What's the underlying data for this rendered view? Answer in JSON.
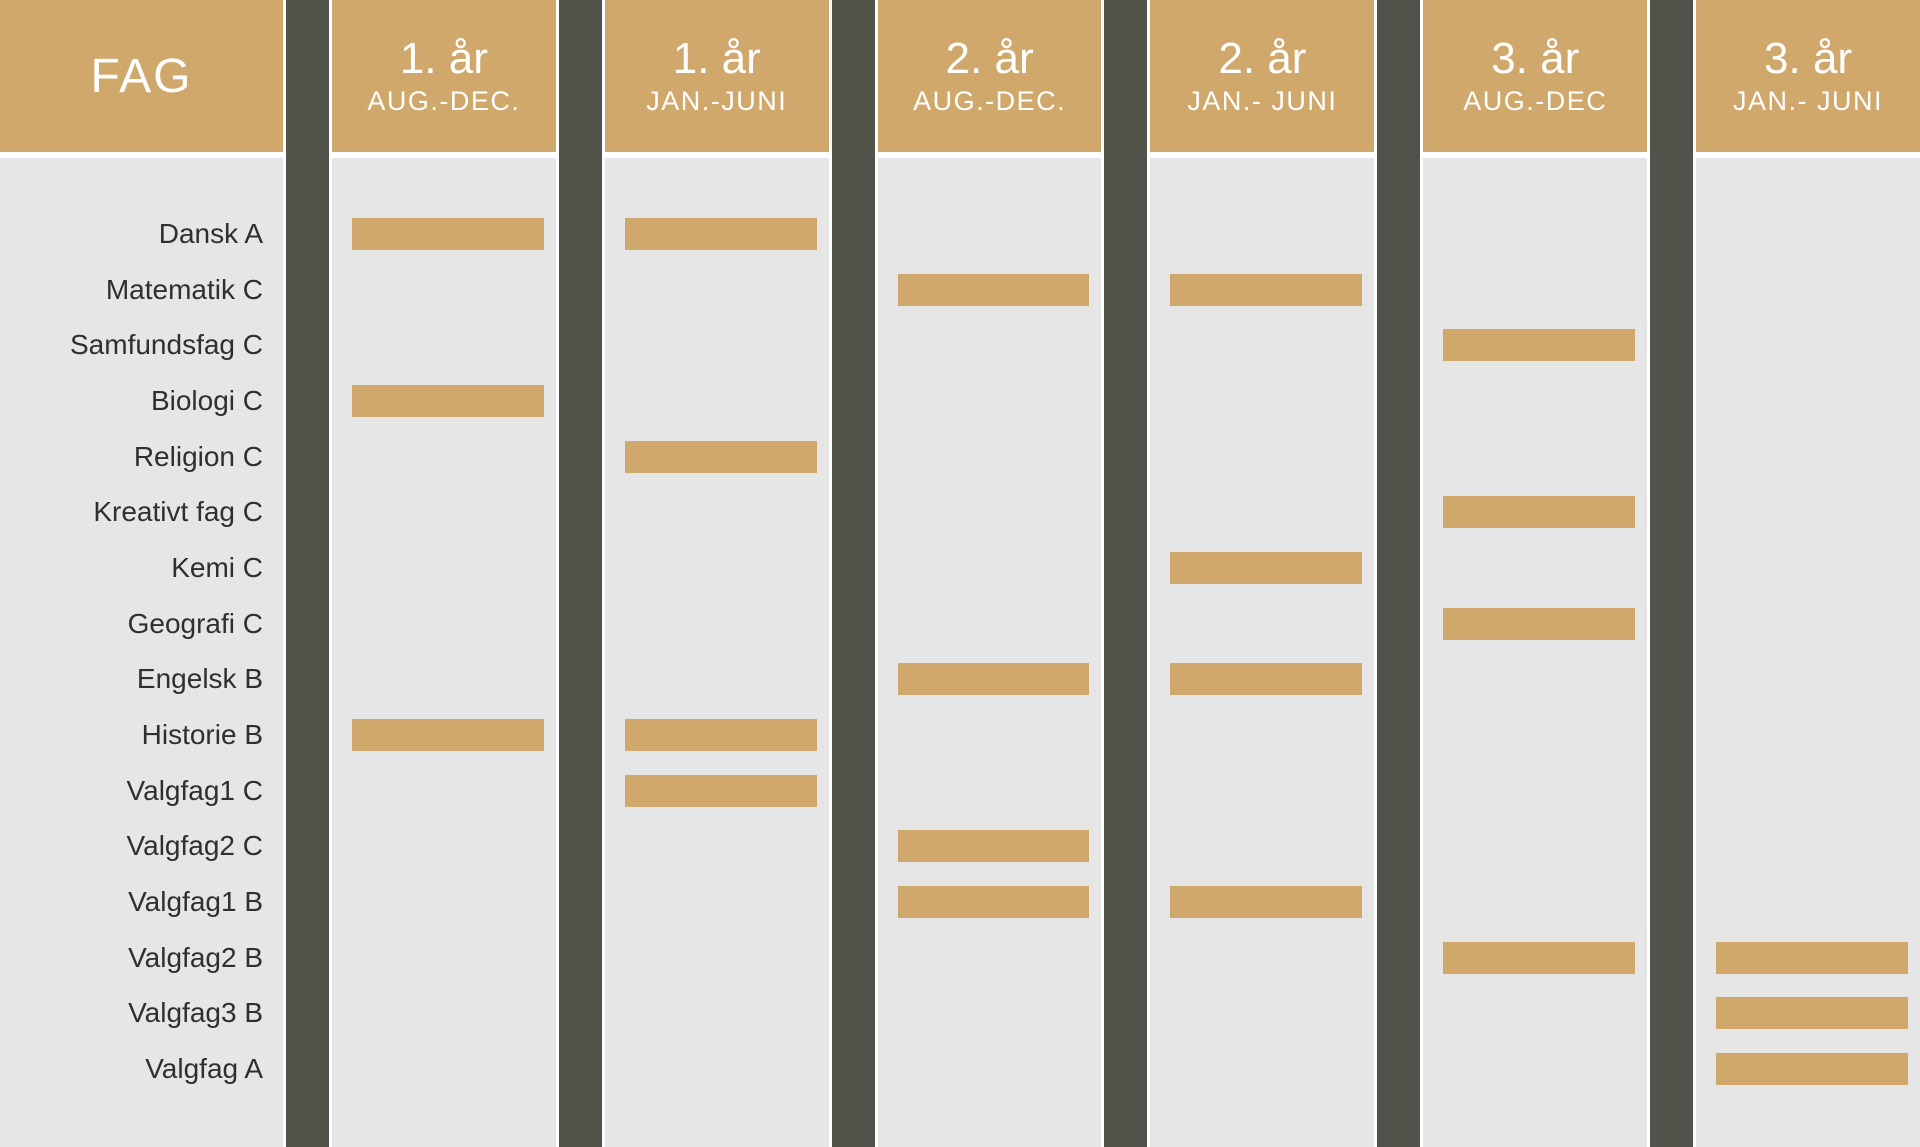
{
  "chart_data": {
    "type": "table",
    "title": "FAG / semester plan matrix",
    "corner_label": "FAG",
    "columns": [
      {
        "year": "1. år",
        "period": "AUG.-DEC."
      },
      {
        "year": "1. år",
        "period": "JAN.-JUNI"
      },
      {
        "year": "2. år",
        "period": "AUG.-DEC."
      },
      {
        "year": "2. år",
        "period": "JAN.- JUNI"
      },
      {
        "year": "3. år",
        "period": "AUG.-DEC"
      },
      {
        "year": "3. år",
        "period": "JAN.- JUNI"
      }
    ],
    "rows": [
      "Dansk A",
      "Matematik C",
      "Samfundsfag C",
      "Biologi C",
      "Religion C",
      "Kreativt fag C",
      "Kemi C",
      "Geografi C",
      "Engelsk B",
      "Historie B",
      "Valgfag1 C",
      "Valgfag2 C",
      "Valgfag1 B",
      "Valgfag2 B",
      "Valgfag3 B",
      "Valgfag A"
    ],
    "matrix": [
      [
        1,
        1,
        0,
        0,
        0,
        0
      ],
      [
        0,
        0,
        1,
        1,
        0,
        0
      ],
      [
        0,
        0,
        0,
        0,
        1,
        0
      ],
      [
        1,
        0,
        0,
        0,
        0,
        0
      ],
      [
        0,
        1,
        0,
        0,
        0,
        0
      ],
      [
        0,
        0,
        0,
        0,
        1,
        0
      ],
      [
        0,
        0,
        0,
        1,
        0,
        0
      ],
      [
        0,
        0,
        0,
        0,
        1,
        0
      ],
      [
        0,
        0,
        1,
        1,
        0,
        0
      ],
      [
        1,
        1,
        0,
        0,
        0,
        0
      ],
      [
        0,
        1,
        0,
        0,
        0,
        0
      ],
      [
        0,
        0,
        1,
        0,
        0,
        0
      ],
      [
        0,
        0,
        1,
        1,
        0,
        0
      ],
      [
        0,
        0,
        0,
        0,
        1,
        1
      ],
      [
        0,
        0,
        0,
        0,
        0,
        1
      ],
      [
        0,
        0,
        0,
        0,
        0,
        1
      ]
    ],
    "legend_position": "none",
    "grid": false
  },
  "colors": {
    "accent_tan": "#d0a86c",
    "separator_dark": "#52514a",
    "cell_background": "#e6e6e6",
    "header_text": "#ffffff",
    "subject_text": "#2f2f2f",
    "page_background": "#ffffff"
  }
}
